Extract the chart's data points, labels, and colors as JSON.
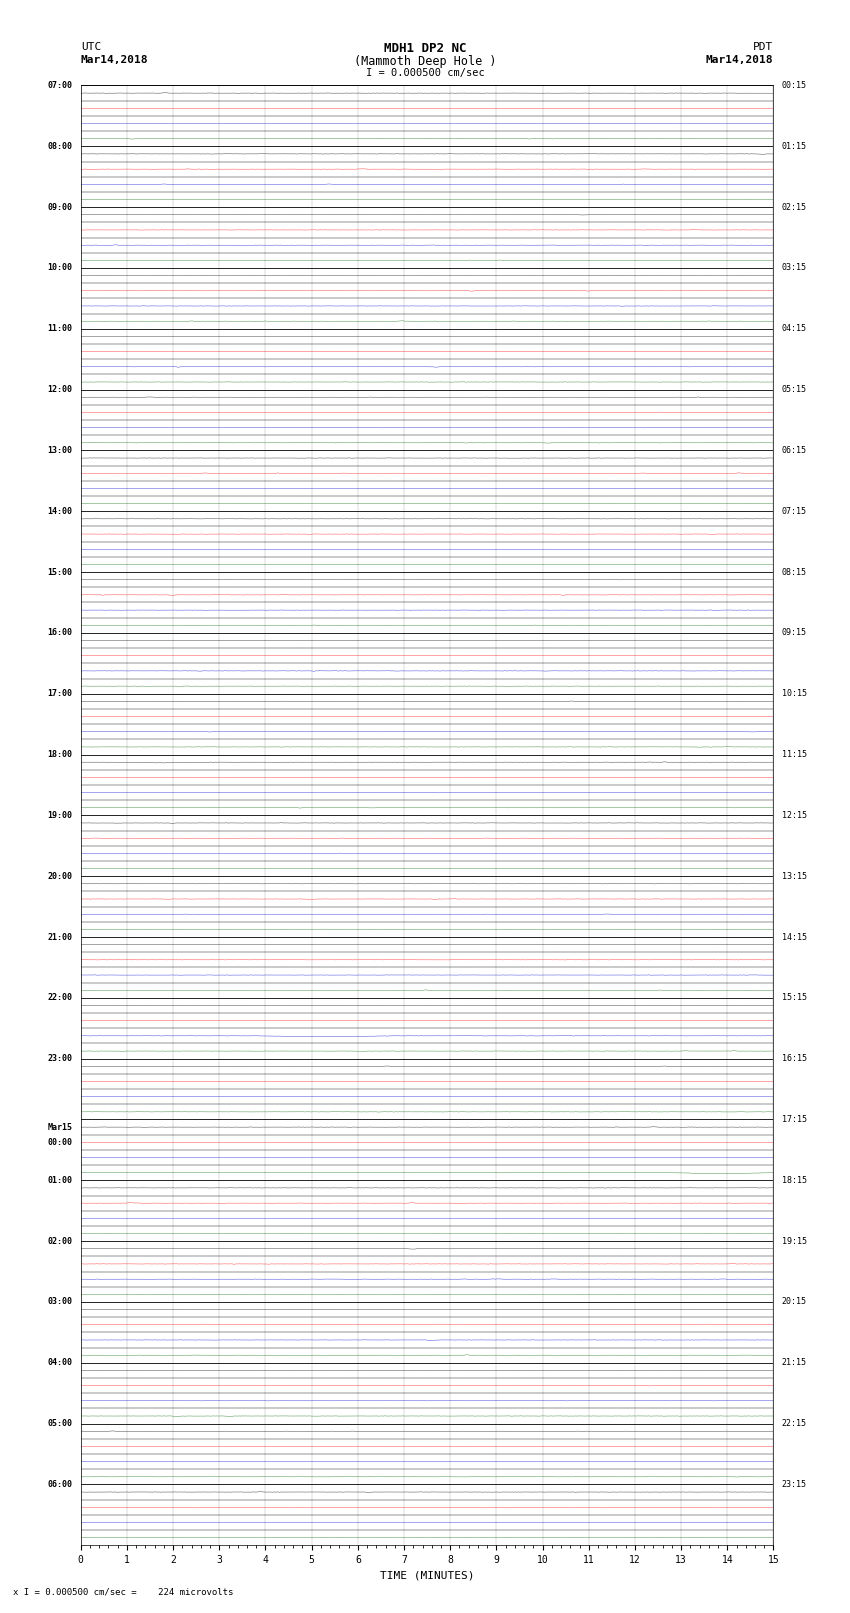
{
  "title_line1": "MDH1 DP2 NC",
  "title_line2": "(Mammoth Deep Hole )",
  "scale_label": "I = 0.000500 cm/sec",
  "left_label_top": "UTC",
  "left_label_date": "Mar14,2018",
  "right_label_top": "PDT",
  "right_label_date": "Mar14,2018",
  "bottom_label": "TIME (MINUTES)",
  "bottom_note": "x I = 0.000500 cm/sec =    224 microvolts",
  "xlabel_ticks": [
    0,
    1,
    2,
    3,
    4,
    5,
    6,
    7,
    8,
    9,
    10,
    11,
    12,
    13,
    14,
    15
  ],
  "utc_times": [
    "07:00",
    "08:00",
    "09:00",
    "10:00",
    "11:00",
    "12:00",
    "13:00",
    "14:00",
    "15:00",
    "16:00",
    "17:00",
    "18:00",
    "19:00",
    "20:00",
    "21:00",
    "22:00",
    "23:00",
    "Mar15\n00:00",
    "01:00",
    "02:00",
    "03:00",
    "04:00",
    "05:00",
    "06:00"
  ],
  "pdt_times": [
    "00:15",
    "01:15",
    "02:15",
    "03:15",
    "04:15",
    "05:15",
    "06:15",
    "07:15",
    "08:15",
    "09:15",
    "10:15",
    "11:15",
    "12:15",
    "13:15",
    "14:15",
    "15:15",
    "16:15",
    "17:15",
    "18:15",
    "19:15",
    "20:15",
    "21:15",
    "22:15",
    "23:15"
  ],
  "num_hour_rows": 24,
  "subtraces_per_row": 4,
  "minutes_per_trace": 15,
  "bg_color": "#ffffff",
  "colors": [
    "#000000",
    "#ff0000",
    "#0000cc",
    "#006600"
  ],
  "grid_color": "#888888",
  "noise_amp": 0.012,
  "spike_amp": 0.06,
  "seed": 12345
}
